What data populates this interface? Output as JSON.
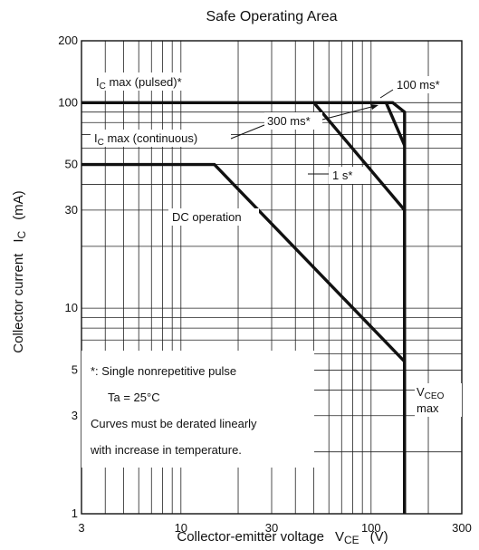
{
  "chart_data": {
    "type": "line",
    "title": "Safe Operating Area",
    "xlabel": {
      "text": "Collector-emitter voltage",
      "symbol": "V",
      "sub": "CE",
      "unit": "(V)"
    },
    "ylabel": {
      "text": "Collector current",
      "symbol": "I",
      "sub": "C",
      "unit": "(mA)"
    },
    "x_scale": "log",
    "y_scale": "log",
    "xlim": [
      3,
      300
    ],
    "ylim": [
      1,
      200
    ],
    "x_ticks": [
      {
        "value": 3,
        "label": "3"
      },
      {
        "value": 10,
        "label": "10"
      },
      {
        "value": 30,
        "label": "30"
      },
      {
        "value": 100,
        "label": "100"
      },
      {
        "value": 300,
        "label": "300"
      }
    ],
    "y_ticks": [
      {
        "value": 1,
        "label": "1"
      },
      {
        "value": 3,
        "label": "3"
      },
      {
        "value": 5,
        "label": "5"
      },
      {
        "value": 10,
        "label": "10"
      },
      {
        "value": 30,
        "label": "30"
      },
      {
        "value": 50,
        "label": "50"
      },
      {
        "value": 100,
        "label": "100"
      },
      {
        "value": 200,
        "label": "200"
      }
    ],
    "grid": true,
    "series": [
      {
        "id": "dc",
        "points": [
          [
            3,
            50
          ],
          [
            15,
            50
          ],
          [
            150,
            5.5
          ],
          [
            150,
            1
          ]
        ]
      },
      {
        "id": "s1",
        "points": [
          [
            50,
            100
          ],
          [
            150,
            30
          ],
          [
            150,
            1
          ]
        ]
      },
      {
        "id": "ms300",
        "points": [
          [
            120,
            100
          ],
          [
            150,
            62
          ]
        ]
      },
      {
        "id": "ms100",
        "points": [
          [
            3,
            100
          ],
          [
            130,
            100
          ],
          [
            150,
            90
          ],
          [
            150,
            1
          ]
        ]
      }
    ],
    "annotations": {
      "ic_pulsed": {
        "prefix": "I",
        "sub": "C",
        "text": " max (pulsed)*"
      },
      "ic_continuous": {
        "prefix": "I",
        "sub": "C",
        "text": " max (continuous)"
      },
      "ms100": "100 ms*",
      "ms300": "300 ms*",
      "s1": "1 s*",
      "dc": "DC operation",
      "vceo": {
        "prefix": "V",
        "sub": "CEO",
        "line2": "max"
      }
    },
    "notes": [
      "*:  Single nonrepetitive pulse",
      "Ta = 25°C",
      "Curves must be derated linearly",
      "with increase in temperature."
    ]
  }
}
